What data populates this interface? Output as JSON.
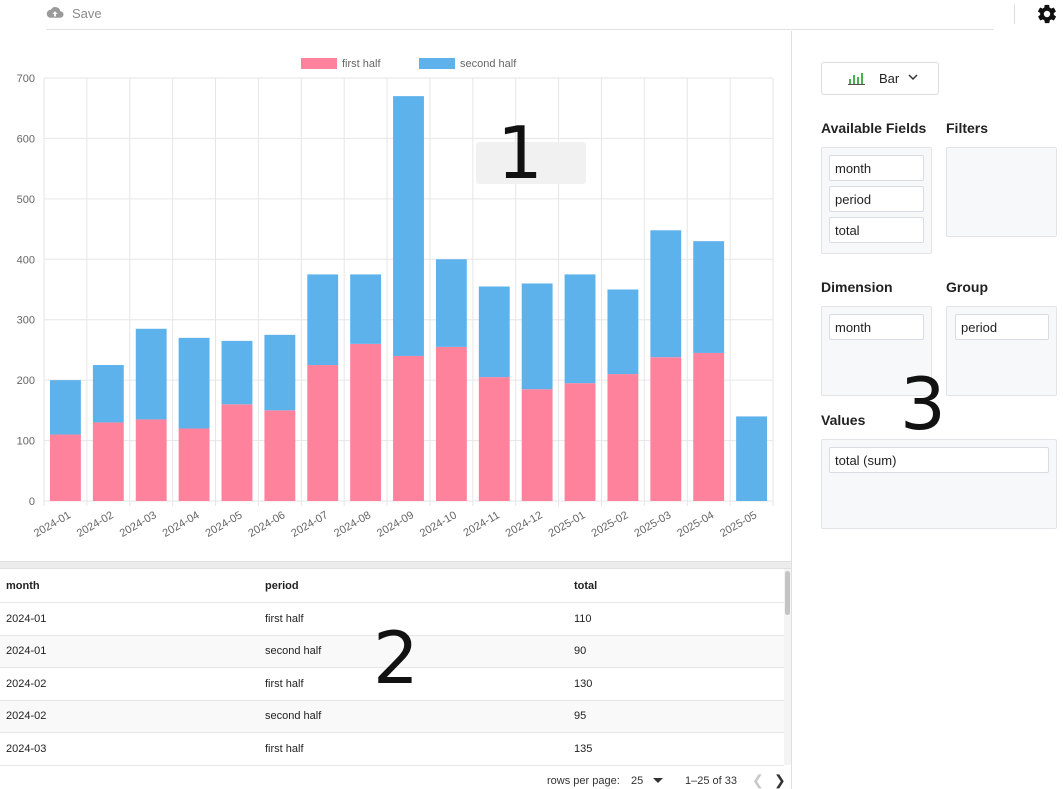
{
  "toolbar": {
    "save_label": "Save",
    "save_icon": "cloud-upload-icon",
    "settings_icon": "gear-icon"
  },
  "annotations": [
    "1",
    "2",
    "3"
  ],
  "chart_data": {
    "type": "bar",
    "stacked": true,
    "categories": [
      "2024-01",
      "2024-02",
      "2024-03",
      "2024-04",
      "2024-05",
      "2024-06",
      "2024-07",
      "2024-08",
      "2024-09",
      "2024-10",
      "2024-11",
      "2024-12",
      "2025-01",
      "2025-02",
      "2025-03",
      "2025-04",
      "2025-05"
    ],
    "series": [
      {
        "name": "first half",
        "color": "#ff829d",
        "values": [
          110,
          130,
          135,
          120,
          160,
          150,
          225,
          260,
          240,
          255,
          205,
          185,
          195,
          210,
          238,
          245,
          null
        ]
      },
      {
        "name": "second half",
        "color": "#5eb2ec",
        "values": [
          90,
          95,
          150,
          150,
          105,
          125,
          150,
          115,
          430,
          145,
          150,
          175,
          180,
          140,
          210,
          185,
          140
        ]
      }
    ],
    "ylim": [
      0,
      700
    ],
    "yticks": [
      0,
      100,
      200,
      300,
      400,
      500,
      600,
      700
    ],
    "legend_position": "top-center",
    "grid": true,
    "xlabel": "",
    "ylabel": "",
    "title": ""
  },
  "table": {
    "columns": [
      "month",
      "period",
      "total"
    ],
    "rows": [
      [
        "2024-01",
        "first half",
        "110"
      ],
      [
        "2024-01",
        "second half",
        "90"
      ],
      [
        "2024-02",
        "first half",
        "130"
      ],
      [
        "2024-02",
        "second half",
        "95"
      ],
      [
        "2024-03",
        "first half",
        "135"
      ]
    ]
  },
  "pagination": {
    "rows_per_page_label": "rows per page:",
    "rows_per_page": "25",
    "range": "1–25 of 33"
  },
  "config": {
    "chart_type": "Bar",
    "available_fields_title": "Available Fields",
    "available_fields": [
      "month",
      "period",
      "total"
    ],
    "filters_title": "Filters",
    "dimension_title": "Dimension",
    "dimension": [
      "month"
    ],
    "group_title": "Group",
    "group": [
      "period"
    ],
    "values_title": "Values",
    "values": [
      "total (sum)"
    ]
  }
}
